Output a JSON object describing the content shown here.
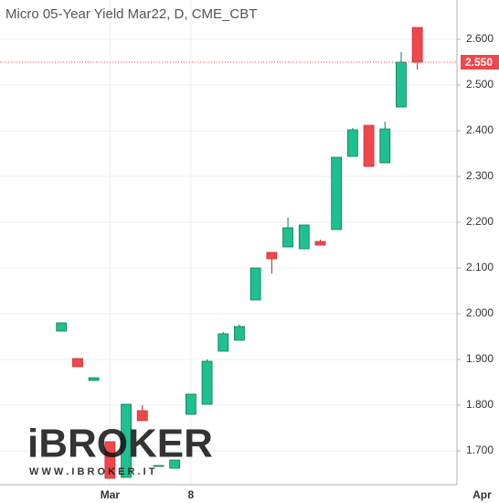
{
  "chart_data": {
    "type": "candlestick",
    "title": "Micro 05-Year Yield Mar22, D, CME_CBT",
    "x": [
      0,
      1,
      2,
      3,
      4,
      5,
      6,
      7,
      8,
      9,
      10,
      11,
      12,
      13,
      14,
      15,
      16,
      17,
      18,
      19,
      20,
      21,
      22
    ],
    "open": [
      1.962,
      1.902,
      1.854,
      1.72,
      1.642,
      1.788,
      1.666,
      1.662,
      1.78,
      1.802,
      1.918,
      1.942,
      2.03,
      2.134,
      2.146,
      2.142,
      2.158,
      2.184,
      2.344,
      2.412,
      2.33,
      2.452,
      2.626
    ],
    "high": [
      1.98,
      1.902,
      1.86,
      1.72,
      1.802,
      1.8,
      1.668,
      1.68,
      1.824,
      1.9,
      1.96,
      1.976,
      2.1,
      2.134,
      2.21,
      2.194,
      2.162,
      2.342,
      2.406,
      2.412,
      2.42,
      2.572,
      2.626
    ],
    "low": [
      1.962,
      1.884,
      1.854,
      1.64,
      1.642,
      1.766,
      1.666,
      1.662,
      1.78,
      1.802,
      1.918,
      1.942,
      2.03,
      2.088,
      2.146,
      2.142,
      2.15,
      2.184,
      2.344,
      2.322,
      2.33,
      2.452,
      2.534
    ],
    "close": [
      1.98,
      1.884,
      1.86,
      1.64,
      1.802,
      1.766,
      1.668,
      1.68,
      1.824,
      1.896,
      1.956,
      1.972,
      2.1,
      2.12,
      2.188,
      2.194,
      2.15,
      2.342,
      2.402,
      2.322,
      2.404,
      2.55,
      2.55
    ],
    "up_color": "#1fc08f",
    "down_color": "#f0474c",
    "xlim": [
      -3.8,
      26.2
    ],
    "xticks": [
      {
        "value": 3,
        "label": "Mar"
      },
      {
        "value": 8,
        "label": "8"
      },
      {
        "value": 26,
        "label": "Apr"
      }
    ],
    "ylim": [
      1.626,
      2.686
    ],
    "yticks": [
      {
        "value": 1.7,
        "label": "1.700"
      },
      {
        "value": 1.8,
        "label": "1.800"
      },
      {
        "value": 1.9,
        "label": "1.900"
      },
      {
        "value": 2.0,
        "label": "2.000"
      },
      {
        "value": 2.1,
        "label": "2.100"
      },
      {
        "value": 2.2,
        "label": "2.200"
      },
      {
        "value": 2.3,
        "label": "2.300"
      },
      {
        "value": 2.4,
        "label": "2.400"
      },
      {
        "value": 2.5,
        "label": "2.500"
      },
      {
        "value": 2.6,
        "label": "2.600"
      }
    ],
    "last_price": {
      "value": 2.55,
      "label": "2.550"
    },
    "grid": true,
    "watermark": {
      "logo": "iBROKER",
      "url": "W W W . I B R O K E R . I T"
    }
  }
}
